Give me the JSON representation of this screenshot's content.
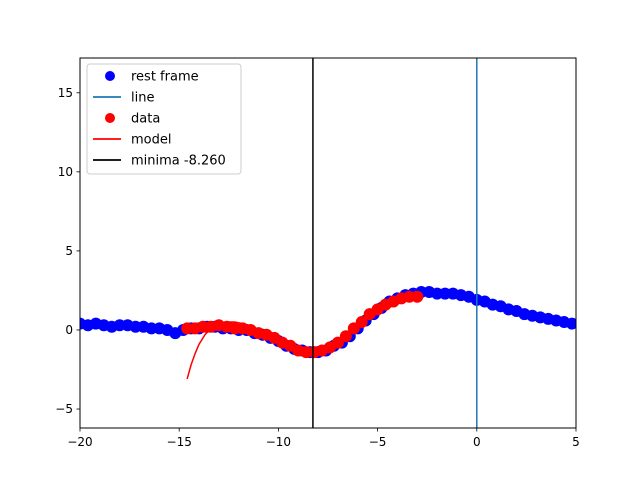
{
  "chart_data": {
    "type": "scatter",
    "xlim": [
      -20,
      5
    ],
    "ylim": [
      -6.2,
      17.2
    ],
    "x_ticks": [
      -20,
      -15,
      -10,
      -5,
      0,
      5
    ],
    "x_tick_labels": [
      "−20",
      "−15",
      "−10",
      "−5",
      "0",
      "5"
    ],
    "y_ticks": [
      -5,
      0,
      5,
      10,
      15
    ],
    "y_tick_labels": [
      "−5",
      "0",
      "5",
      "10",
      "15"
    ],
    "grid": false,
    "legend_position": "top-left",
    "legend": [
      {
        "label": "rest frame",
        "kind": "marker",
        "color": "#0000ff"
      },
      {
        "label": "line",
        "kind": "line",
        "color": "#1f77b4"
      },
      {
        "label": "data",
        "kind": "marker",
        "color": "#ff0000"
      },
      {
        "label": "model",
        "kind": "line",
        "color": "#ff0000"
      },
      {
        "label": "minima -8.260",
        "kind": "line",
        "color": "#000000"
      }
    ],
    "series": [
      {
        "name": "rest frame",
        "kind": "scatter",
        "color": "#0000ff",
        "x": [
          -20.0,
          -19.6,
          -19.2,
          -18.8,
          -18.4,
          -18.0,
          -17.6,
          -17.2,
          -16.8,
          -16.4,
          -16.0,
          -15.6,
          -15.2,
          -14.8,
          -14.4,
          -14.0,
          -13.6,
          -13.2,
          -12.8,
          -12.4,
          -12.0,
          -11.6,
          -11.2,
          -10.8,
          -10.4,
          -10.0,
          -9.6,
          -9.2,
          -8.8,
          -8.4,
          -8.0,
          -7.6,
          -7.2,
          -6.8,
          -6.4,
          -6.0,
          -5.6,
          -5.2,
          -4.8,
          -4.4,
          -4.0,
          -3.6,
          -3.2,
          -2.8,
          -2.4,
          -2.0,
          -1.6,
          -1.2,
          -0.8,
          -0.4,
          0.0,
          0.4,
          0.8,
          1.2,
          1.6,
          2.0,
          2.4,
          2.8,
          3.2,
          3.6,
          4.0,
          4.4,
          4.8
        ],
        "y": [
          0.4,
          0.3,
          0.4,
          0.3,
          0.2,
          0.3,
          0.3,
          0.2,
          0.2,
          0.1,
          0.1,
          0.0,
          -0.2,
          0.0,
          0.1,
          0.1,
          0.2,
          0.2,
          0.1,
          0.1,
          0.0,
          0.0,
          -0.2,
          -0.3,
          -0.5,
          -0.7,
          -1.0,
          -1.2,
          -1.3,
          -1.4,
          -1.4,
          -1.3,
          -1.0,
          -0.8,
          -0.4,
          0.1,
          0.6,
          1.0,
          1.4,
          1.8,
          2.0,
          2.2,
          2.3,
          2.4,
          2.4,
          2.3,
          2.3,
          2.3,
          2.2,
          2.1,
          1.9,
          1.8,
          1.6,
          1.5,
          1.3,
          1.2,
          1.0,
          0.9,
          0.8,
          0.7,
          0.6,
          0.5,
          0.4
        ]
      },
      {
        "name": "data",
        "kind": "scatter",
        "color": "#ff0000",
        "x": [
          -14.6,
          -14.2,
          -13.8,
          -13.4,
          -13.0,
          -12.6,
          -12.2,
          -11.8,
          -11.4,
          -11.0,
          -10.6,
          -10.2,
          -9.8,
          -9.4,
          -9.0,
          -8.6,
          -8.2,
          -7.8,
          -7.4,
          -7.0,
          -6.6,
          -6.2,
          -5.8,
          -5.4,
          -5.0,
          -4.6,
          -4.2,
          -3.8,
          -3.4,
          -3.0
        ],
        "y": [
          0.1,
          0.1,
          0.2,
          0.2,
          0.3,
          0.2,
          0.1,
          0.1,
          0.0,
          -0.2,
          -0.3,
          -0.5,
          -0.8,
          -1.0,
          -1.3,
          -1.4,
          -1.4,
          -1.3,
          -1.1,
          -0.8,
          -0.4,
          0.1,
          0.5,
          1.0,
          1.3,
          1.6,
          1.8,
          2.0,
          2.1,
          2.1
        ]
      },
      {
        "name": "model",
        "kind": "line",
        "color": "#ff0000",
        "x": [
          -14.6,
          -14.4,
          -14.2,
          -14.0,
          -13.7,
          -13.4,
          -13.0,
          -12.6,
          -12.2,
          -11.8,
          -11.4,
          -11.0,
          -10.6,
          -10.2,
          -9.8,
          -9.4,
          -9.0,
          -8.6,
          -8.2,
          -7.8,
          -7.4,
          -7.0,
          -6.6,
          -6.2,
          -5.8,
          -5.4,
          -5.0,
          -4.6,
          -4.2,
          -3.8,
          -3.4,
          -3.0
        ],
        "y": [
          -3.1,
          -2.2,
          -1.5,
          -0.9,
          -0.3,
          0.1,
          0.4,
          0.5,
          0.5,
          0.4,
          0.2,
          0.0,
          -0.2,
          -0.5,
          -0.8,
          -1.1,
          -1.3,
          -1.4,
          -1.4,
          -1.3,
          -1.1,
          -0.8,
          -0.4,
          0.1,
          0.5,
          1.0,
          1.3,
          1.6,
          1.8,
          2.0,
          2.1,
          2.2
        ]
      }
    ],
    "vlines": [
      {
        "name": "line",
        "x": 0.0,
        "color": "#1f77b4"
      },
      {
        "name": "minima -8.260",
        "x": -8.26,
        "color": "#000000"
      }
    ]
  }
}
